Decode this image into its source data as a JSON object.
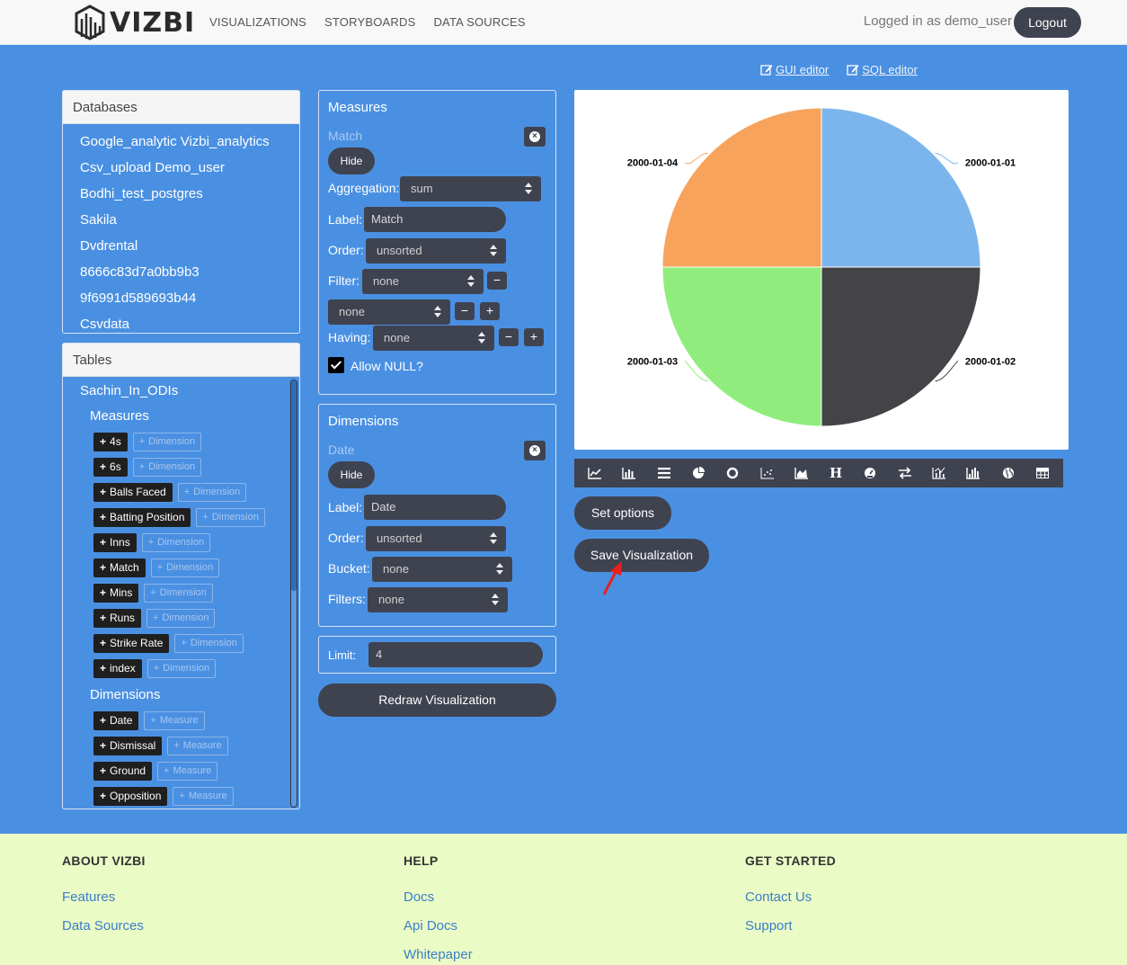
{
  "nav": {
    "brand": "VIZBI",
    "links": [
      "VISUALIZATIONS",
      "STORYBOARDS",
      "DATA SOURCES"
    ],
    "logged_in": "Logged in as demo_user",
    "logout": "Logout"
  },
  "editors": {
    "gui": "GUI editor",
    "sql": "SQL editor"
  },
  "databases": {
    "title": "Databases",
    "items": [
      "Google_analytic Vizbi_analytics",
      "Csv_upload Demo_user",
      "Bodhi_test_postgres",
      "Sakila",
      "Dvdrental",
      "8666c83d7a0bb9b3",
      "9f6991d589693b44",
      "Csvdata"
    ]
  },
  "tables": {
    "title": "Tables",
    "table_name": "Sachin_In_ODIs",
    "measures_title": "Measures",
    "measures": [
      "4s",
      "6s",
      "Balls Faced",
      "Batting Position",
      "Inns",
      "Match",
      "Mins",
      "Runs",
      "Strike Rate",
      "index"
    ],
    "measure_add_label": "Dimension",
    "dimensions_title": "Dimensions",
    "dimensions": [
      "Date",
      "Dismissal",
      "Ground",
      "Opposition"
    ],
    "dimension_add_label": "Measure",
    "plus": "+"
  },
  "measures_panel": {
    "title": "Measures",
    "field": "Match",
    "hide": "Hide",
    "aggregation_label": "Aggregation:",
    "aggregation_value": "sum",
    "label_label": "Label:",
    "label_value": "Match",
    "order_label": "Order:",
    "order_value": "unsorted",
    "filter_label": "Filter:",
    "filter_value": "none",
    "filter2_value": "none",
    "having_label": "Having:",
    "having_value": "none",
    "allow_null": "Allow NULL?"
  },
  "dimensions_panel": {
    "title": "Dimensions",
    "field": "Date",
    "hide": "Hide",
    "label_label": "Label:",
    "label_value": "Date",
    "order_label": "Order:",
    "order_value": "unsorted",
    "bucket_label": "Bucket:",
    "bucket_value": "none",
    "filters_label": "Filters:",
    "filters_value": "none"
  },
  "limit": {
    "label": "Limit:",
    "value": "4"
  },
  "redraw": "Redraw Visualization",
  "set_options": "Set options",
  "save_visualization": "Save Visualization",
  "toolbar_icons": [
    "line-chart-icon",
    "bar-chart-icon",
    "list-icon",
    "pie-chart-icon",
    "donut-chart-icon",
    "scatter-chart-icon",
    "area-chart-icon",
    "heading-icon",
    "gauge-icon",
    "swap-icon",
    "combo-chart-icon",
    "histogram-icon",
    "globe-icon",
    "table-icon"
  ],
  "chart_data": {
    "type": "pie",
    "categories": [
      "2000-01-01",
      "2000-01-02",
      "2000-01-03",
      "2000-01-04"
    ],
    "values": [
      1,
      1,
      1,
      1
    ],
    "colors": [
      "#7cb5ec",
      "#434348",
      "#90ed7d",
      "#f7a35c"
    ]
  },
  "footer": {
    "about": {
      "title": "ABOUT VIZBI",
      "links": [
        "Features",
        "Data Sources"
      ]
    },
    "help": {
      "title": "HELP",
      "links": [
        "Docs",
        "Api Docs",
        "Whitepaper"
      ]
    },
    "start": {
      "title": "GET STARTED",
      "links": [
        "Contact Us",
        "Support"
      ]
    }
  }
}
